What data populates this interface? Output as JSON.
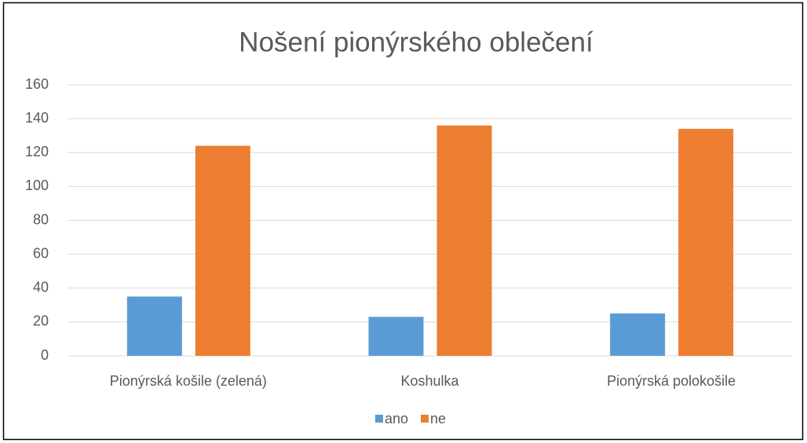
{
  "chart_data": {
    "type": "bar",
    "title": "Nošení pionýrského oblečení",
    "categories": [
      "Pionýrská košile (zelená)",
      "Koshulka",
      "Pionýrská polokošile"
    ],
    "series": [
      {
        "name": "ano",
        "color": "#5b9bd5",
        "values": [
          35,
          23,
          25
        ]
      },
      {
        "name": "ne",
        "color": "#ed7d31",
        "values": [
          124,
          136,
          134
        ]
      }
    ],
    "ylim": [
      0,
      160
    ],
    "yticks": [
      0,
      20,
      40,
      60,
      80,
      100,
      120,
      140,
      160
    ],
    "grid": true,
    "legend": "bottom"
  }
}
